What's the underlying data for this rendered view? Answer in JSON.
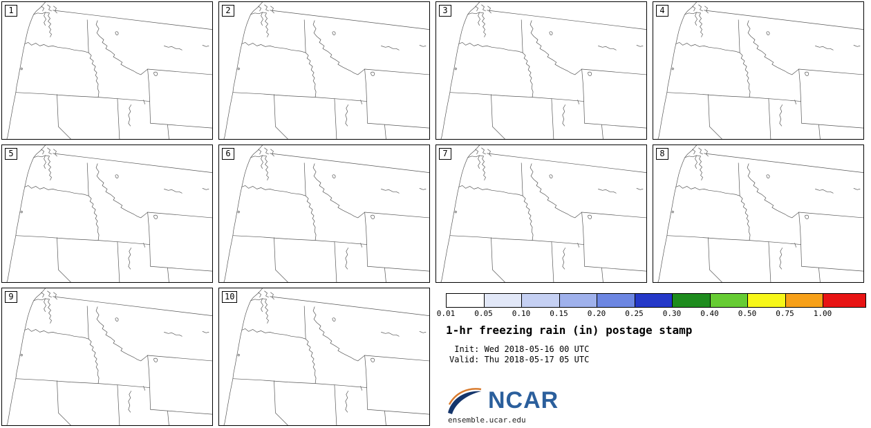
{
  "panels": [
    {
      "label": "1"
    },
    {
      "label": "2"
    },
    {
      "label": "3"
    },
    {
      "label": "4"
    },
    {
      "label": "5"
    },
    {
      "label": "6"
    },
    {
      "label": "7"
    },
    {
      "label": "8"
    },
    {
      "label": "9"
    },
    {
      "label": "10"
    }
  ],
  "legend": {
    "title": "1-hr freezing rain (in) postage stamp",
    "init_label": " Init: Wed 2018-05-16 00 UTC",
    "valid_label": "Valid: Thu 2018-05-17 05 UTC",
    "ticks": [
      "0.01",
      "0.05",
      "0.10",
      "0.15",
      "0.20",
      "0.25",
      "0.30",
      "0.40",
      "0.50",
      "0.75",
      "1.00"
    ],
    "colors": [
      "#ffffff",
      "#e2e8f8",
      "#c5d0f3",
      "#9fb1ec",
      "#6c86e2",
      "#2438c8",
      "#1e8c1e",
      "#66cc33",
      "#f7f718",
      "#f7a018",
      "#e81414"
    ]
  },
  "branding": {
    "logo_text": "NCAR",
    "site": "ensemble.ucar.edu",
    "logo_color": "#2b5f9c",
    "swoosh_navy": "#14356b",
    "swoosh_orange": "#d97b2e"
  }
}
